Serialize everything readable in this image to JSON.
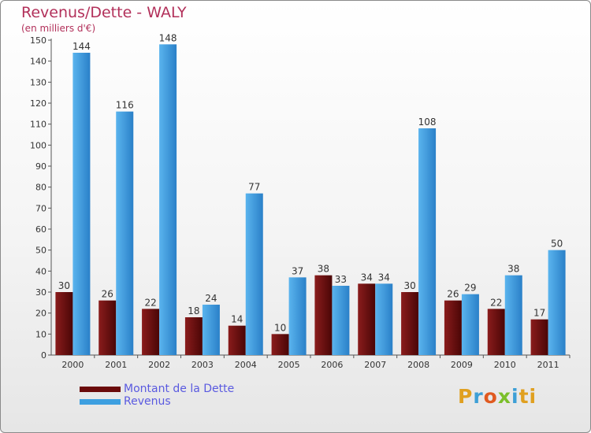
{
  "chart_data": {
    "type": "bar",
    "title": "Revenus/Dette - WALY",
    "subtitle": "(en milliers d'€)",
    "categories": [
      "2000",
      "2001",
      "2002",
      "2003",
      "2004",
      "2005",
      "2006",
      "2007",
      "2008",
      "2009",
      "2010",
      "2011"
    ],
    "series": [
      {
        "name": "Montant de la Dette",
        "color": "#7a1414",
        "values": [
          30,
          26,
          22,
          18,
          14,
          10,
          38,
          34,
          30,
          26,
          22,
          17
        ]
      },
      {
        "name": "Revenus",
        "color": "#3d9fe0",
        "values": [
          144,
          116,
          148,
          24,
          77,
          37,
          33,
          34,
          108,
          29,
          38,
          50
        ]
      }
    ],
    "ylim": [
      0,
      150
    ],
    "yticks": [
      0,
      10,
      20,
      30,
      40,
      50,
      60,
      70,
      80,
      90,
      100,
      110,
      120,
      130,
      140,
      150
    ],
    "grid": false,
    "legend_position": "bottom-left"
  },
  "logo": {
    "text": "Proxiti",
    "letters": [
      "P",
      "r",
      "o",
      "x",
      "i",
      "ti"
    ]
  }
}
